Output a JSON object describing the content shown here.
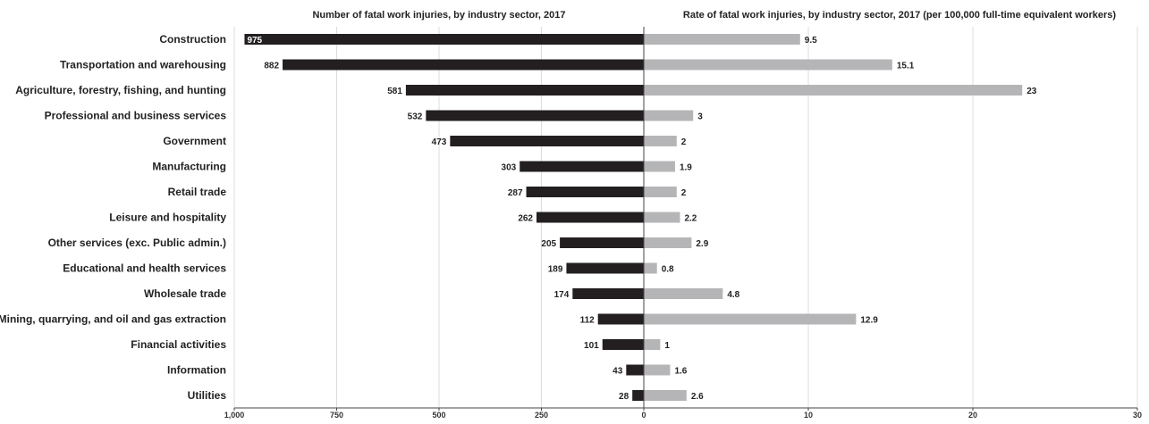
{
  "chart_data": [
    {
      "type": "bar",
      "orientation": "horizontal",
      "direction": "leftward",
      "title": "Number of fatal work injuries, by industry sector, 2017",
      "categories": [
        "Construction",
        "Transportation and warehousing",
        "Agriculture, forestry, fishing, and hunting",
        "Professional and business services",
        "Government",
        "Manufacturing",
        "Retail trade",
        "Leisure and hospitality",
        "Other services (exc. Public admin.)",
        "Educational and health services",
        "Wholesale trade",
        "Mining, quarrying, and oil and gas extraction",
        "Financial activities",
        "Information",
        "Utilities"
      ],
      "values": [
        975,
        882,
        581,
        532,
        473,
        303,
        287,
        262,
        205,
        189,
        174,
        112,
        101,
        43,
        28
      ],
      "value_labels": [
        "975",
        "882",
        "581",
        "532",
        "473",
        "303",
        "287",
        "262",
        "205",
        "189",
        "174",
        "112",
        "101",
        "43",
        "28"
      ],
      "xlim": [
        0,
        1000
      ],
      "ticks": [
        1000,
        750,
        500,
        250,
        0
      ],
      "tick_labels": [
        "1,000",
        "750",
        "500",
        "250",
        "0"
      ],
      "color": "#231f20",
      "grid": true
    },
    {
      "type": "bar",
      "orientation": "horizontal",
      "direction": "rightward",
      "title": "Rate of fatal work injuries, by industry sector, 2017 (per 100,000 full-time equivalent workers)",
      "categories": [
        "Construction",
        "Transportation and warehousing",
        "Agriculture, forestry, fishing, and hunting",
        "Professional and business services",
        "Government",
        "Manufacturing",
        "Retail trade",
        "Leisure and hospitality",
        "Other services (exc. Public admin.)",
        "Educational and health services",
        "Wholesale trade",
        "Mining, quarrying, and oil and gas extraction",
        "Financial activities",
        "Information",
        "Utilities"
      ],
      "values": [
        9.5,
        15.1,
        23,
        3,
        2,
        1.9,
        2,
        2.2,
        2.9,
        0.8,
        4.8,
        12.9,
        1,
        1.6,
        2.6
      ],
      "value_labels": [
        "9.5",
        "15.1",
        "23",
        "3",
        "2",
        "1.9",
        "2",
        "2.2",
        "2.9",
        "0.8",
        "4.8",
        "12.9",
        "1",
        "1.6",
        "2.6"
      ],
      "xlim": [
        0,
        30
      ],
      "ticks": [
        0,
        10,
        20,
        30
      ],
      "tick_labels": [
        "0",
        "10",
        "20",
        "30"
      ],
      "color": "#b5b5b7",
      "grid": true
    }
  ]
}
